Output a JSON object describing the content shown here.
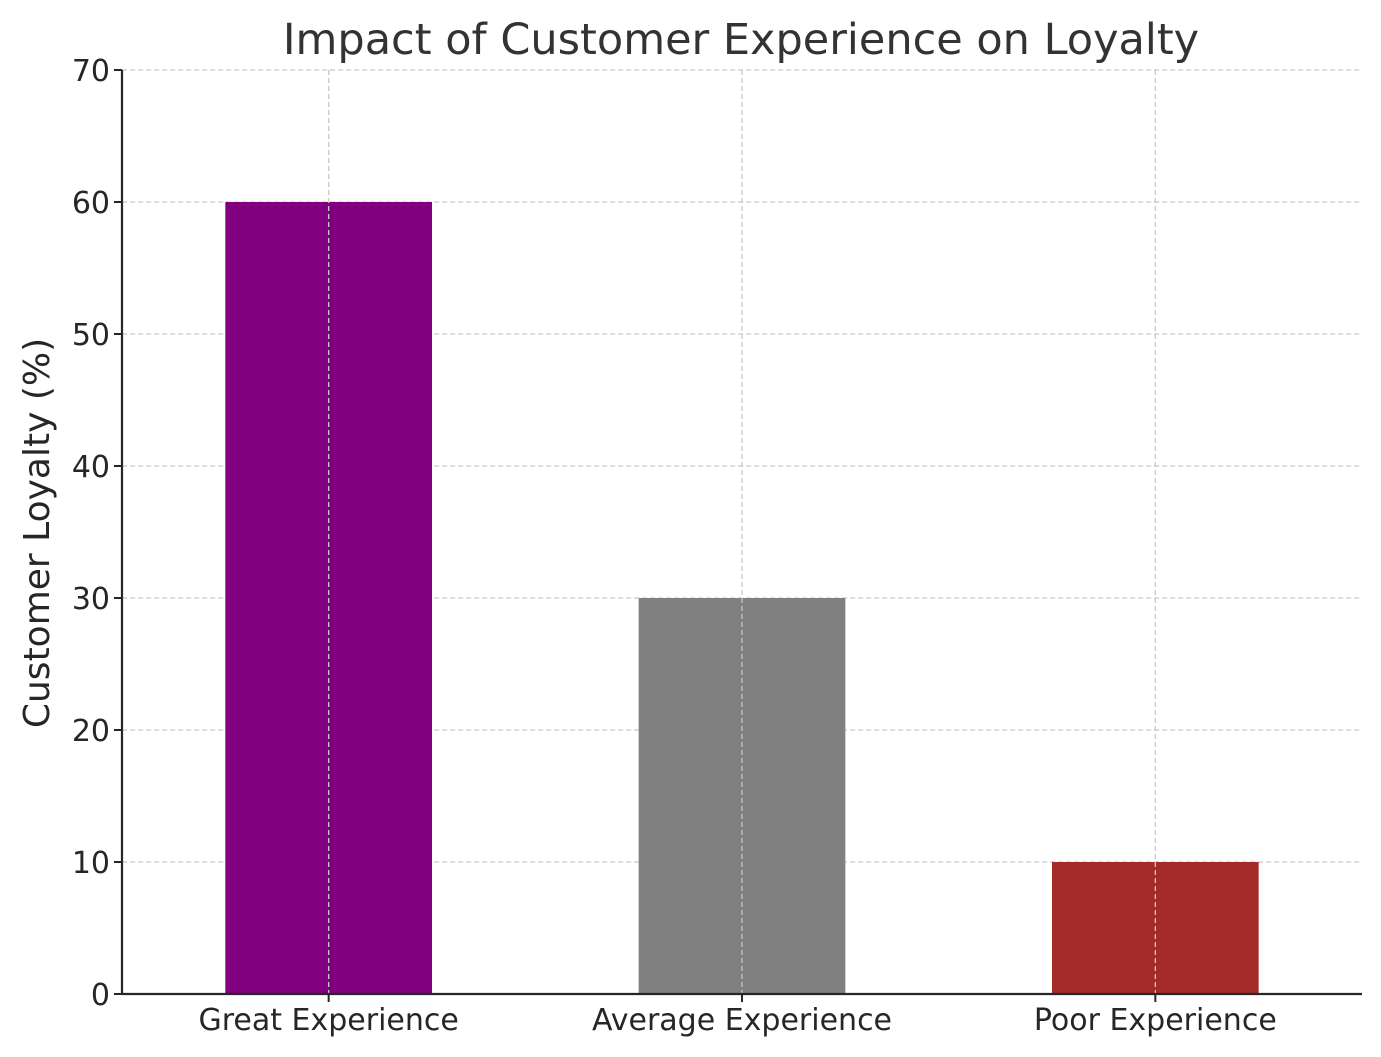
{
  "chart_data": {
    "type": "bar",
    "title": "Impact of Customer Experience on Loyalty",
    "xlabel": "",
    "ylabel": "Customer Loyalty (%)",
    "categories": [
      "Great Experience",
      "Average Experience",
      "Poor Experience"
    ],
    "values": [
      60,
      30,
      10
    ],
    "colors": [
      "#800080",
      "#808080",
      "#a52a2a"
    ],
    "ylim": [
      0,
      70
    ],
    "yticks": [
      0,
      10,
      20,
      30,
      40,
      50,
      60,
      70
    ],
    "grid": true,
    "legend": "none"
  }
}
